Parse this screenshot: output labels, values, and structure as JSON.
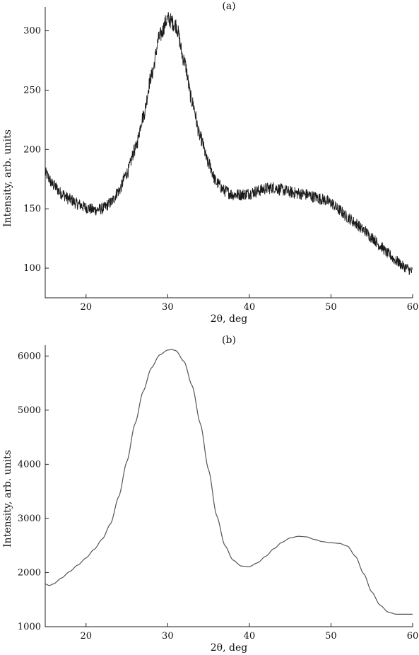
{
  "chart_data": [
    {
      "type": "line",
      "panel_label": "(a)",
      "xlabel": "2θ, deg",
      "ylabel": "Intensity, arb. units",
      "xlim": [
        15,
        60
      ],
      "ylim": [
        75,
        320
      ],
      "xticks": [
        20,
        30,
        40,
        50,
        60
      ],
      "yticks": [
        100,
        150,
        200,
        250,
        300
      ],
      "grid": false,
      "noisy": true,
      "series": [
        {
          "color": "#1a1a1a",
          "x": [
            15,
            16,
            17,
            18,
            19,
            20,
            21,
            22,
            23,
            24,
            25,
            26,
            27,
            28,
            29,
            30,
            31,
            32,
            33,
            34,
            35,
            36,
            37,
            38,
            39,
            40,
            41,
            42,
            43,
            44,
            45,
            46,
            47,
            48,
            49,
            50,
            51,
            52,
            53,
            54,
            55,
            56,
            57,
            58,
            59,
            60
          ],
          "y": [
            180,
            170,
            163,
            158,
            154,
            151,
            149,
            150,
            155,
            165,
            180,
            200,
            228,
            262,
            295,
            310,
            305,
            275,
            240,
            210,
            188,
            172,
            165,
            162,
            162,
            163,
            165,
            167,
            168,
            166,
            164,
            163,
            162,
            160,
            158,
            155,
            149,
            143,
            138,
            132,
            126,
            119,
            112,
            106,
            101,
            97
          ]
        }
      ]
    },
    {
      "type": "line",
      "panel_label": "(b)",
      "xlabel": "2θ, deg",
      "ylabel": "Intensity, arb. units",
      "xlim": [
        15,
        60
      ],
      "ylim": [
        1000,
        6200
      ],
      "xticks": [
        20,
        30,
        40,
        50,
        60
      ],
      "yticks": [
        1000,
        2000,
        3000,
        4000,
        5000,
        6000
      ],
      "grid": false,
      "noisy": false,
      "series": [
        {
          "color": "#555555",
          "x": [
            15,
            15.5,
            16,
            17,
            18,
            19,
            20,
            21,
            22,
            23,
            24,
            25,
            26,
            27,
            28,
            29,
            30,
            30.5,
            31,
            32,
            33,
            34,
            35,
            36,
            37,
            38,
            39,
            40,
            41,
            42,
            43,
            44,
            45,
            46,
            47,
            48,
            49,
            50,
            51,
            52,
            53,
            54,
            55,
            56,
            57,
            58,
            59,
            60
          ],
          "y": [
            1790,
            1760,
            1790,
            1900,
            2020,
            2140,
            2270,
            2430,
            2620,
            2900,
            3400,
            4050,
            4750,
            5350,
            5780,
            6020,
            6110,
            6120,
            6100,
            5900,
            5450,
            4750,
            3900,
            3050,
            2500,
            2230,
            2120,
            2110,
            2180,
            2300,
            2440,
            2560,
            2640,
            2670,
            2660,
            2610,
            2570,
            2550,
            2540,
            2490,
            2300,
            1980,
            1640,
            1400,
            1270,
            1230,
            1230,
            1230
          ]
        }
      ]
    }
  ]
}
